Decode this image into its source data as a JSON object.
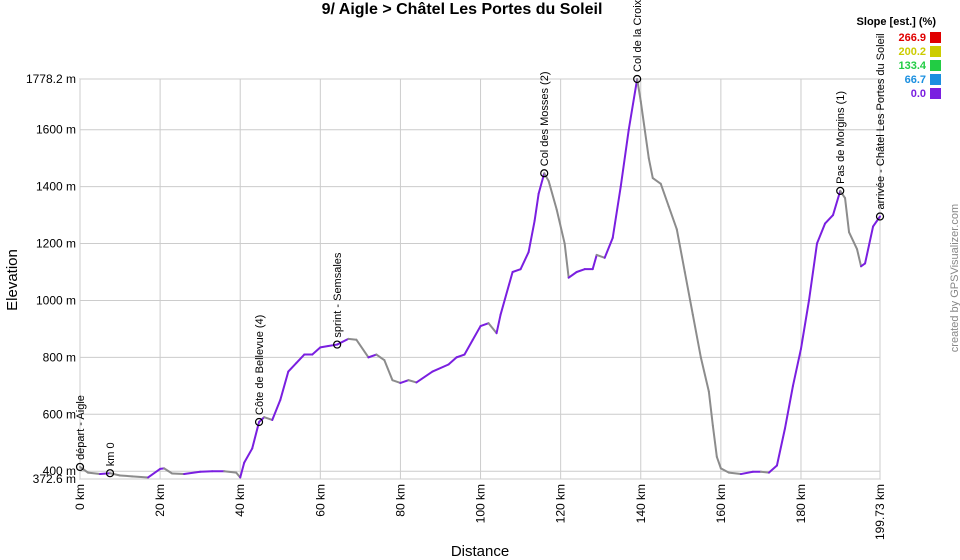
{
  "chart_data": {
    "type": "line",
    "title": "9/ Aigle > Châtel Les Portes du Soleil",
    "xlabel": "Distance",
    "ylabel": "Elevation",
    "credit": "created by GPSVisualizer.com",
    "xlim": [
      0,
      199.73
    ],
    "ylim": [
      372.6,
      1778.2
    ],
    "xticks": [
      {
        "value": 0,
        "label": "0 km"
      },
      {
        "value": 20,
        "label": "20 km"
      },
      {
        "value": 40,
        "label": "40 km"
      },
      {
        "value": 60,
        "label": "60 km"
      },
      {
        "value": 80,
        "label": "80 km"
      },
      {
        "value": 100,
        "label": "100 km"
      },
      {
        "value": 120,
        "label": "120 km"
      },
      {
        "value": 140,
        "label": "140 km"
      },
      {
        "value": 160,
        "label": "160 km"
      },
      {
        "value": 180,
        "label": "180 km"
      },
      {
        "value": 199.73,
        "label": "199.73 km"
      }
    ],
    "yticks": [
      {
        "value": 372.6,
        "label": "372.6 m"
      },
      {
        "value": 400,
        "label": "400 m"
      },
      {
        "value": 600,
        "label": "600 m"
      },
      {
        "value": 800,
        "label": "800 m"
      },
      {
        "value": 1000,
        "label": "1000 m"
      },
      {
        "value": 1200,
        "label": "1200 m"
      },
      {
        "value": 1400,
        "label": "1400 m"
      },
      {
        "value": 1600,
        "label": "1600 m"
      },
      {
        "value": 1778.2,
        "label": "1778.2 m"
      }
    ],
    "grid": true,
    "profile": {
      "color": "#7a1fe0",
      "descent_color": "#8c8c8c",
      "x": [
        0,
        2,
        5,
        7.5,
        10,
        13,
        17,
        20,
        21,
        23,
        26,
        30,
        33,
        36,
        39,
        40,
        41,
        43,
        44.7,
        46,
        48,
        50,
        52,
        54,
        56,
        58,
        60,
        62,
        64.2,
        67,
        69,
        72,
        74,
        76,
        78,
        80,
        82,
        84,
        88,
        92,
        94,
        96,
        98,
        100,
        102,
        104,
        105,
        108,
        110,
        112,
        113.5,
        114.5,
        115.9,
        117,
        119,
        121,
        122,
        124,
        126,
        128,
        129,
        131,
        133,
        135,
        137,
        139.1,
        140,
        142,
        143,
        145,
        147,
        149,
        151,
        153,
        155,
        157,
        158,
        159,
        160,
        162,
        165,
        168,
        170,
        172,
        174,
        176,
        178,
        180,
        182,
        184,
        186,
        188,
        189.8,
        191,
        192,
        194,
        195,
        196,
        198,
        199.73
      ],
      "values": [
        415,
        395,
        390,
        393,
        385,
        382,
        378,
        408,
        410,
        392,
        390,
        398,
        400,
        400,
        395,
        378,
        430,
        480,
        573,
        590,
        580,
        650,
        750,
        780,
        810,
        810,
        835,
        840,
        845,
        865,
        862,
        800,
        810,
        790,
        720,
        710,
        720,
        712,
        750,
        775,
        800,
        810,
        860,
        910,
        920,
        885,
        950,
        1100,
        1110,
        1170,
        1280,
        1375,
        1447,
        1420,
        1320,
        1200,
        1080,
        1100,
        1110,
        1110,
        1160,
        1150,
        1220,
        1400,
        1600,
        1778.2,
        1700,
        1500,
        1430,
        1410,
        1330,
        1250,
        1100,
        950,
        800,
        680,
        560,
        450,
        410,
        395,
        390,
        398,
        398,
        395,
        420,
        550,
        700,
        830,
        1000,
        1200,
        1270,
        1300,
        1385,
        1360,
        1240,
        1180,
        1120,
        1130,
        1260,
        1295
      ]
    },
    "waypoints": [
      {
        "name": "départ - Aigle",
        "x": 0,
        "y": 415
      },
      {
        "name": "km 0",
        "x": 7.5,
        "y": 393
      },
      {
        "name": "Côte de Bellevue (4)",
        "x": 44.7,
        "y": 573
      },
      {
        "name": "sprint - Semsales",
        "x": 64.2,
        "y": 845
      },
      {
        "name": "Col des Mosses (2)",
        "x": 115.9,
        "y": 1447
      },
      {
        "name": "Col de la Croix",
        "x": 139.1,
        "y": 1778.2
      },
      {
        "name": "Pas de Morgins (1)",
        "x": 189.8,
        "y": 1385
      },
      {
        "name": "arrivée - Châtel Les Portes du Soleil",
        "x": 199.73,
        "y": 1295
      }
    ],
    "legend": {
      "title": "Slope [est.] (%)",
      "items": [
        {
          "value": 266.9,
          "color": "#e00000"
        },
        {
          "value": 200.2,
          "color": "#cccc00"
        },
        {
          "value": 133.4,
          "color": "#22cc44"
        },
        {
          "value": 66.7,
          "color": "#1a8fe0"
        },
        {
          "value": {
            "value": 0,
            "label": "0.0"
          },
          "color": "#7a1fe0"
        }
      ]
    }
  }
}
